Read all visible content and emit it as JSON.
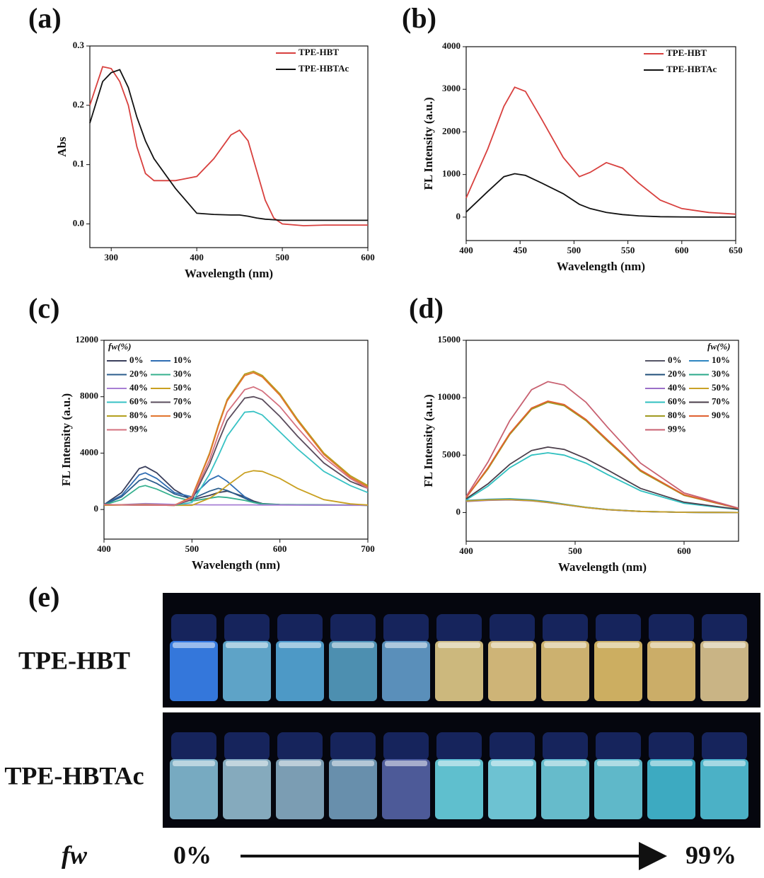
{
  "chart_data": [
    {
      "type": "line",
      "panel": "(a)",
      "x_label": "Wavelength (nm)",
      "y_label": "Abs",
      "legend": "upper right",
      "xlim": [
        275,
        600
      ],
      "ylim": [
        -0.04,
        0.3
      ],
      "xticks": [
        300,
        400,
        500,
        600
      ],
      "yticks": [
        {
          "value": 0,
          "label": "0.0"
        },
        0.1,
        0.2,
        0.3
      ],
      "x": [
        275,
        290,
        300,
        310,
        320,
        330,
        340,
        350,
        375,
        400,
        420,
        440,
        450,
        460,
        470,
        480,
        490,
        500,
        525,
        550,
        575,
        600
      ],
      "series": [
        {
          "name": "TPE-HBT",
          "color": "#d8403e",
          "values": [
            0.2,
            0.265,
            0.262,
            0.24,
            0.2,
            0.13,
            0.085,
            0.073,
            0.073,
            0.08,
            0.11,
            0.15,
            0.158,
            0.14,
            0.09,
            0.04,
            0.01,
            0,
            -0.003,
            -0.002,
            -0.002,
            -0.002
          ]
        },
        {
          "name": "TPE-HBTAc",
          "color": "#111111",
          "values": [
            0.17,
            0.24,
            0.255,
            0.26,
            0.23,
            0.18,
            0.14,
            0.11,
            0.06,
            0.018,
            0.016,
            0.015,
            0.015,
            0.013,
            0.01,
            0.008,
            0.007,
            0.006,
            0.006,
            0.006,
            0.006,
            0.006
          ]
        }
      ]
    },
    {
      "type": "line",
      "panel": "(b)",
      "x_label": "Wavelength (nm)",
      "y_label": "FL Intensity (a.u.)",
      "legend": "upper right",
      "xlim": [
        400,
        650
      ],
      "ylim": [
        -550,
        4000
      ],
      "xticks": [
        400,
        450,
        500,
        550,
        600,
        650
      ],
      "yticks": [
        0,
        1000,
        2000,
        3000,
        4000
      ],
      "x": [
        400,
        420,
        435,
        445,
        455,
        470,
        490,
        505,
        515,
        530,
        545,
        560,
        580,
        600,
        625,
        650
      ],
      "series": [
        {
          "name": "TPE-HBT",
          "color": "#d8403e",
          "values": [
            450,
            1600,
            2600,
            3050,
            2950,
            2300,
            1400,
            950,
            1050,
            1280,
            1150,
            800,
            400,
            200,
            110,
            70
          ]
        },
        {
          "name": "TPE-HBTAc",
          "color": "#111111",
          "values": [
            120,
            600,
            950,
            1020,
            980,
            800,
            550,
            300,
            200,
            110,
            60,
            30,
            10,
            5,
            2,
            0
          ]
        }
      ]
    },
    {
      "type": "line",
      "panel": "(c)",
      "x_label": "Wavelength (nm)",
      "y_label": "FL Intensity (a.u.)",
      "legend": "upper left",
      "legend_title": "fw(%)",
      "xlim": [
        400,
        700
      ],
      "ylim": [
        -2100,
        12000
      ],
      "xticks": [
        400,
        500,
        600,
        700
      ],
      "yticks": [
        0,
        4000,
        8000,
        12000
      ],
      "x": [
        400,
        420,
        440,
        447,
        460,
        480,
        500,
        520,
        530,
        540,
        560,
        570,
        580,
        600,
        620,
        650,
        680,
        700
      ],
      "series": [
        {
          "name": "0%",
          "color": "#3a3f5c",
          "values": [
            350,
            1200,
            2900,
            3050,
            2600,
            1400,
            700,
            1000,
            1200,
            1300,
            900,
            600,
            420,
            350,
            340,
            330,
            320,
            300
          ]
        },
        {
          "name": "10%",
          "color": "#2f6db3",
          "values": [
            350,
            1000,
            2450,
            2600,
            2200,
            1200,
            900,
            2100,
            2400,
            2000,
            900,
            500,
            380,
            340,
            330,
            320,
            310,
            300
          ]
        },
        {
          "name": "20%",
          "color": "#2b5d8c",
          "values": [
            340,
            900,
            2050,
            2200,
            1850,
            1100,
            750,
            1300,
            1500,
            1350,
            800,
            500,
            380,
            340,
            330,
            320,
            310,
            300
          ]
        },
        {
          "name": "30%",
          "color": "#35b08e",
          "values": [
            330,
            700,
            1600,
            1700,
            1450,
            900,
            600,
            800,
            900,
            850,
            650,
            500,
            400,
            340,
            330,
            320,
            310,
            300
          ]
        },
        {
          "name": "40%",
          "color": "#a77fd4",
          "values": [
            300,
            340,
            400,
            420,
            400,
            360,
            340,
            330,
            330,
            330,
            330,
            330,
            320,
            320,
            310,
            310,
            300,
            300
          ]
        },
        {
          "name": "50%",
          "color": "#c9a020",
          "values": [
            300,
            320,
            350,
            350,
            330,
            300,
            300,
            800,
            1200,
            1700,
            2600,
            2750,
            2700,
            2200,
            1500,
            700,
            400,
            320
          ]
        },
        {
          "name": "60%",
          "color": "#37c2c4",
          "values": [
            350,
            330,
            320,
            320,
            310,
            300,
            500,
            2500,
            3800,
            5200,
            6900,
            6950,
            6700,
            5500,
            4300,
            2700,
            1700,
            1200
          ]
        },
        {
          "name": "70%",
          "color": "#5a4c5c",
          "values": [
            350,
            330,
            320,
            320,
            310,
            300,
            700,
            3200,
            4800,
            6300,
            7900,
            8000,
            7800,
            6600,
            5200,
            3300,
            2000,
            1500
          ]
        },
        {
          "name": "80%",
          "color": "#b4a01e",
          "values": [
            350,
            330,
            320,
            320,
            310,
            300,
            900,
            4000,
            6000,
            7800,
            9600,
            9800,
            9500,
            8200,
            6400,
            4000,
            2400,
            1700
          ]
        },
        {
          "name": "90%",
          "color": "#e2742e",
          "values": [
            350,
            330,
            320,
            320,
            310,
            300,
            900,
            3900,
            5900,
            7700,
            9500,
            9700,
            9400,
            8100,
            6300,
            3900,
            2300,
            1600
          ]
        },
        {
          "name": "99%",
          "color": "#d4707e",
          "values": [
            350,
            330,
            320,
            320,
            310,
            300,
            800,
            3500,
            5300,
            6900,
            8500,
            8700,
            8400,
            7300,
            5800,
            3700,
            2200,
            1500
          ]
        }
      ]
    },
    {
      "type": "line",
      "panel": "(d)",
      "x_label": "Wavelength (nm)",
      "y_label": "FL Intensity (a.u.)",
      "legend": "upper right",
      "legend_title": "fw(%)",
      "xlim": [
        400,
        650
      ],
      "ylim": [
        -2500,
        15000
      ],
      "xticks": [
        400,
        500,
        600
      ],
      "yticks": [
        0,
        5000,
        10000,
        15000
      ],
      "x": [
        400,
        420,
        440,
        460,
        475,
        490,
        510,
        530,
        560,
        600,
        650
      ],
      "series": [
        {
          "name": "0%",
          "color": "#555566",
          "values": [
            1000,
            1100,
            1150,
            1050,
            900,
            700,
            450,
            250,
            100,
            20,
            0
          ]
        },
        {
          "name": "10%",
          "color": "#2e86c1",
          "values": [
            1050,
            1150,
            1200,
            1100,
            950,
            720,
            460,
            260,
            100,
            20,
            0
          ]
        },
        {
          "name": "20%",
          "color": "#1f4e79",
          "values": [
            980,
            1080,
            1120,
            1030,
            880,
            690,
            440,
            240,
            90,
            20,
            0
          ]
        },
        {
          "name": "30%",
          "color": "#2aa88a",
          "values": [
            1020,
            1120,
            1170,
            1070,
            920,
            710,
            450,
            250,
            100,
            20,
            0
          ]
        },
        {
          "name": "40%",
          "color": "#9b6fc8",
          "values": [
            960,
            1060,
            1100,
            1010,
            870,
            680,
            430,
            240,
            90,
            20,
            0
          ]
        },
        {
          "name": "50%",
          "color": "#c9a227",
          "values": [
            1000,
            1100,
            1130,
            1040,
            890,
            700,
            440,
            250,
            100,
            20,
            0
          ]
        },
        {
          "name": "60%",
          "color": "#30c0c0",
          "values": [
            1100,
            2300,
            3900,
            5000,
            5200,
            5000,
            4300,
            3300,
            1900,
            800,
            250
          ]
        },
        {
          "name": "70%",
          "color": "#4a3d4a",
          "values": [
            1200,
            2500,
            4200,
            5400,
            5700,
            5500,
            4700,
            3700,
            2100,
            900,
            280
          ]
        },
        {
          "name": "80%",
          "color": "#a09a20",
          "values": [
            1300,
            3800,
            6800,
            9000,
            9600,
            9300,
            8000,
            6200,
            3600,
            1500,
            350
          ]
        },
        {
          "name": "90%",
          "color": "#e06030",
          "values": [
            1300,
            3900,
            6900,
            9100,
            9700,
            9400,
            8100,
            6300,
            3700,
            1550,
            360
          ]
        },
        {
          "name": "99%",
          "color": "#c86070",
          "values": [
            1400,
            4400,
            8000,
            10700,
            11400,
            11100,
            9600,
            7400,
            4300,
            1700,
            380
          ]
        }
      ]
    }
  ],
  "photo_panel": {
    "label": "(e)",
    "rows": [
      "TPE-HBT",
      "TPE-HBTAc"
    ],
    "axis_label": "fw",
    "start": "0%",
    "end": "99%"
  }
}
